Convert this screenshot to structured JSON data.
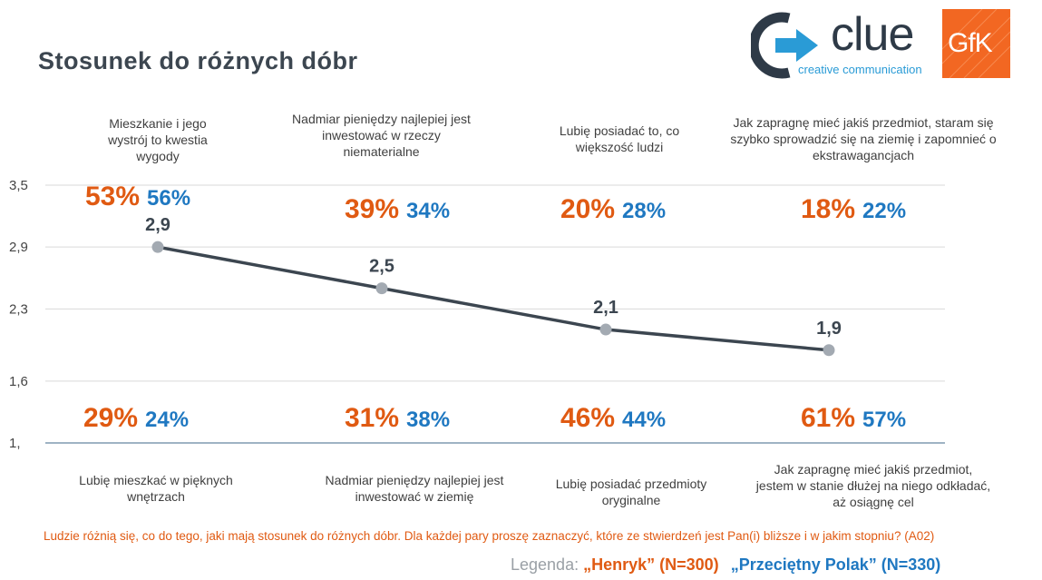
{
  "title": "Stosunek do różnych dóbr",
  "logos": {
    "clue_word": "clue",
    "clue_sub": "creative communication",
    "gfk": "GfK"
  },
  "colors": {
    "henryk": "#e05a12",
    "polak": "#1f78c1",
    "line": "#3c4650",
    "marker": "#a3aab2"
  },
  "top_statements": [
    "Mieszkanie i jego wystrój to kwestia wygody",
    "Nadmiar pieniędzy najlepiej jest inwestować w rzeczy niematerialne",
    "Lubię posiadać to, co większość ludzi",
    "Jak zapragnę mieć jakiś przedmiot, staram się szybko sprowadzić się na ziemię i zapomnieć o ekstrawagancjach"
  ],
  "bottom_statements": [
    "Lubię mieszkać w pięknych wnętrzach",
    "Nadmiar pieniędzy najlepiej jest inwestować w ziemię",
    "Lubię posiadać przedmioty oryginalne",
    "Jak zapragnę mieć jakiś przedmiot, jestem w stanie dłużej na niego odkładać, aż osiągnę cel"
  ],
  "top_percentages": [
    {
      "henryk": "53%",
      "polak": "56%"
    },
    {
      "henryk": "39%",
      "polak": "34%"
    },
    {
      "henryk": "20%",
      "polak": "28%"
    },
    {
      "henryk": "18%",
      "polak": "22%"
    }
  ],
  "bottom_percentages": [
    {
      "henryk": "29%",
      "polak": "24%"
    },
    {
      "henryk": "31%",
      "polak": "38%"
    },
    {
      "henryk": "46%",
      "polak": "44%"
    },
    {
      "henryk": "61%",
      "polak": "57%"
    }
  ],
  "question": "Ludzie różnią się, co do tego, jaki mają stosunek do różnych dóbr. Dla każdej pary proszę zaznaczyć, które ze stwierdzeń jest Pan(i) bliższe i w jakim stopniu? (A02)",
  "legend": {
    "label": "Legenda:",
    "henryk": "„Henryk” (N=300)",
    "polak": "„Przeciętny Polak” (N=330)"
  },
  "chart_data": {
    "type": "line",
    "x": [
      1,
      2,
      3,
      4
    ],
    "values": [
      2.9,
      2.5,
      2.1,
      1.9
    ],
    "data_labels": [
      "2,9",
      "2,5",
      "2,1",
      "1,9"
    ],
    "y_ticks": [
      1.0,
      1.6,
      2.3,
      2.9,
      3.5
    ],
    "y_tick_labels": [
      "1,",
      "1,6",
      "2,3",
      "2,9",
      "3,5"
    ],
    "ylim": [
      1.0,
      3.5
    ],
    "grid": true
  }
}
